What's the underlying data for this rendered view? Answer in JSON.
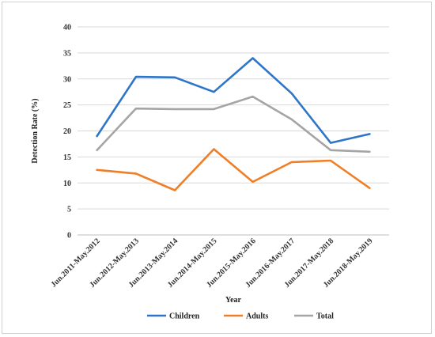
{
  "chart_data": {
    "type": "line",
    "title": "",
    "xlabel": "Year",
    "ylabel": "Detection Rate (%)",
    "ylim": [
      0,
      40
    ],
    "yticks": [
      0,
      5,
      10,
      15,
      20,
      25,
      30,
      35,
      40
    ],
    "grid": "horizontal",
    "legend_position": "bottom",
    "categories": [
      "Jun.2011-May.2012",
      "Jun.2012-May.2013",
      "Jun.2013-May.2014",
      "Jun.2014-May.2015",
      "Jun.2015-May.2016",
      "Jun.2016-May.2017",
      "Jun.2017-May.2018",
      "Jun.2018-May.2019"
    ],
    "series": [
      {
        "name": "Children",
        "color": "#2E75C9",
        "values": [
          19.0,
          30.4,
          30.3,
          27.5,
          34.0,
          27.2,
          17.7,
          19.4
        ]
      },
      {
        "name": "Adults",
        "color": "#F07E26",
        "values": [
          12.5,
          11.8,
          8.6,
          16.5,
          10.2,
          14.0,
          14.3,
          9.0
        ]
      },
      {
        "name": "Total",
        "color": "#A5A5A5",
        "values": [
          16.3,
          24.3,
          24.2,
          24.2,
          26.6,
          22.2,
          16.3,
          16.0
        ]
      }
    ]
  }
}
